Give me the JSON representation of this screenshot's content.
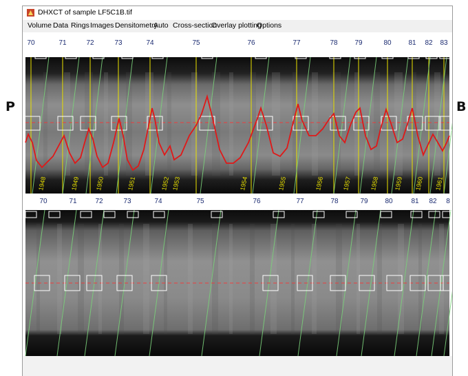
{
  "side_labels": {
    "left": "P",
    "right": "B"
  },
  "window": {
    "title": "DHXCT of sample LF5C1B.tif",
    "menu": [
      "Volume",
      "Data",
      "Rings",
      "Images",
      "Densitometry",
      "Auto",
      "Cross-section",
      "Overlay plotting",
      "Options"
    ]
  },
  "colors": {
    "ring_boundary": "#e8e000",
    "ring_line": "#7ad07a",
    "density_profile": "#e01818",
    "pith_line": "#ff3030",
    "window_box": "#ffffff"
  },
  "top_panel": {
    "ring_labels": [
      "70",
      "71",
      "72",
      "73",
      "74",
      "75",
      "76",
      "77",
      "78",
      "79",
      "80",
      "81",
      "82",
      "83"
    ],
    "year_labels": [
      "1948",
      "1949",
      "1950",
      "1951",
      "1952",
      "1953",
      "1954",
      "1955",
      "1956",
      "1957",
      "1958",
      "1959",
      "1960",
      "1961"
    ]
  },
  "bottom_panel": {
    "ring_labels": [
      "70",
      "71",
      "72",
      "73",
      "74",
      "75",
      "76",
      "77",
      "78",
      "79",
      "80",
      "81",
      "82",
      "8"
    ]
  }
}
